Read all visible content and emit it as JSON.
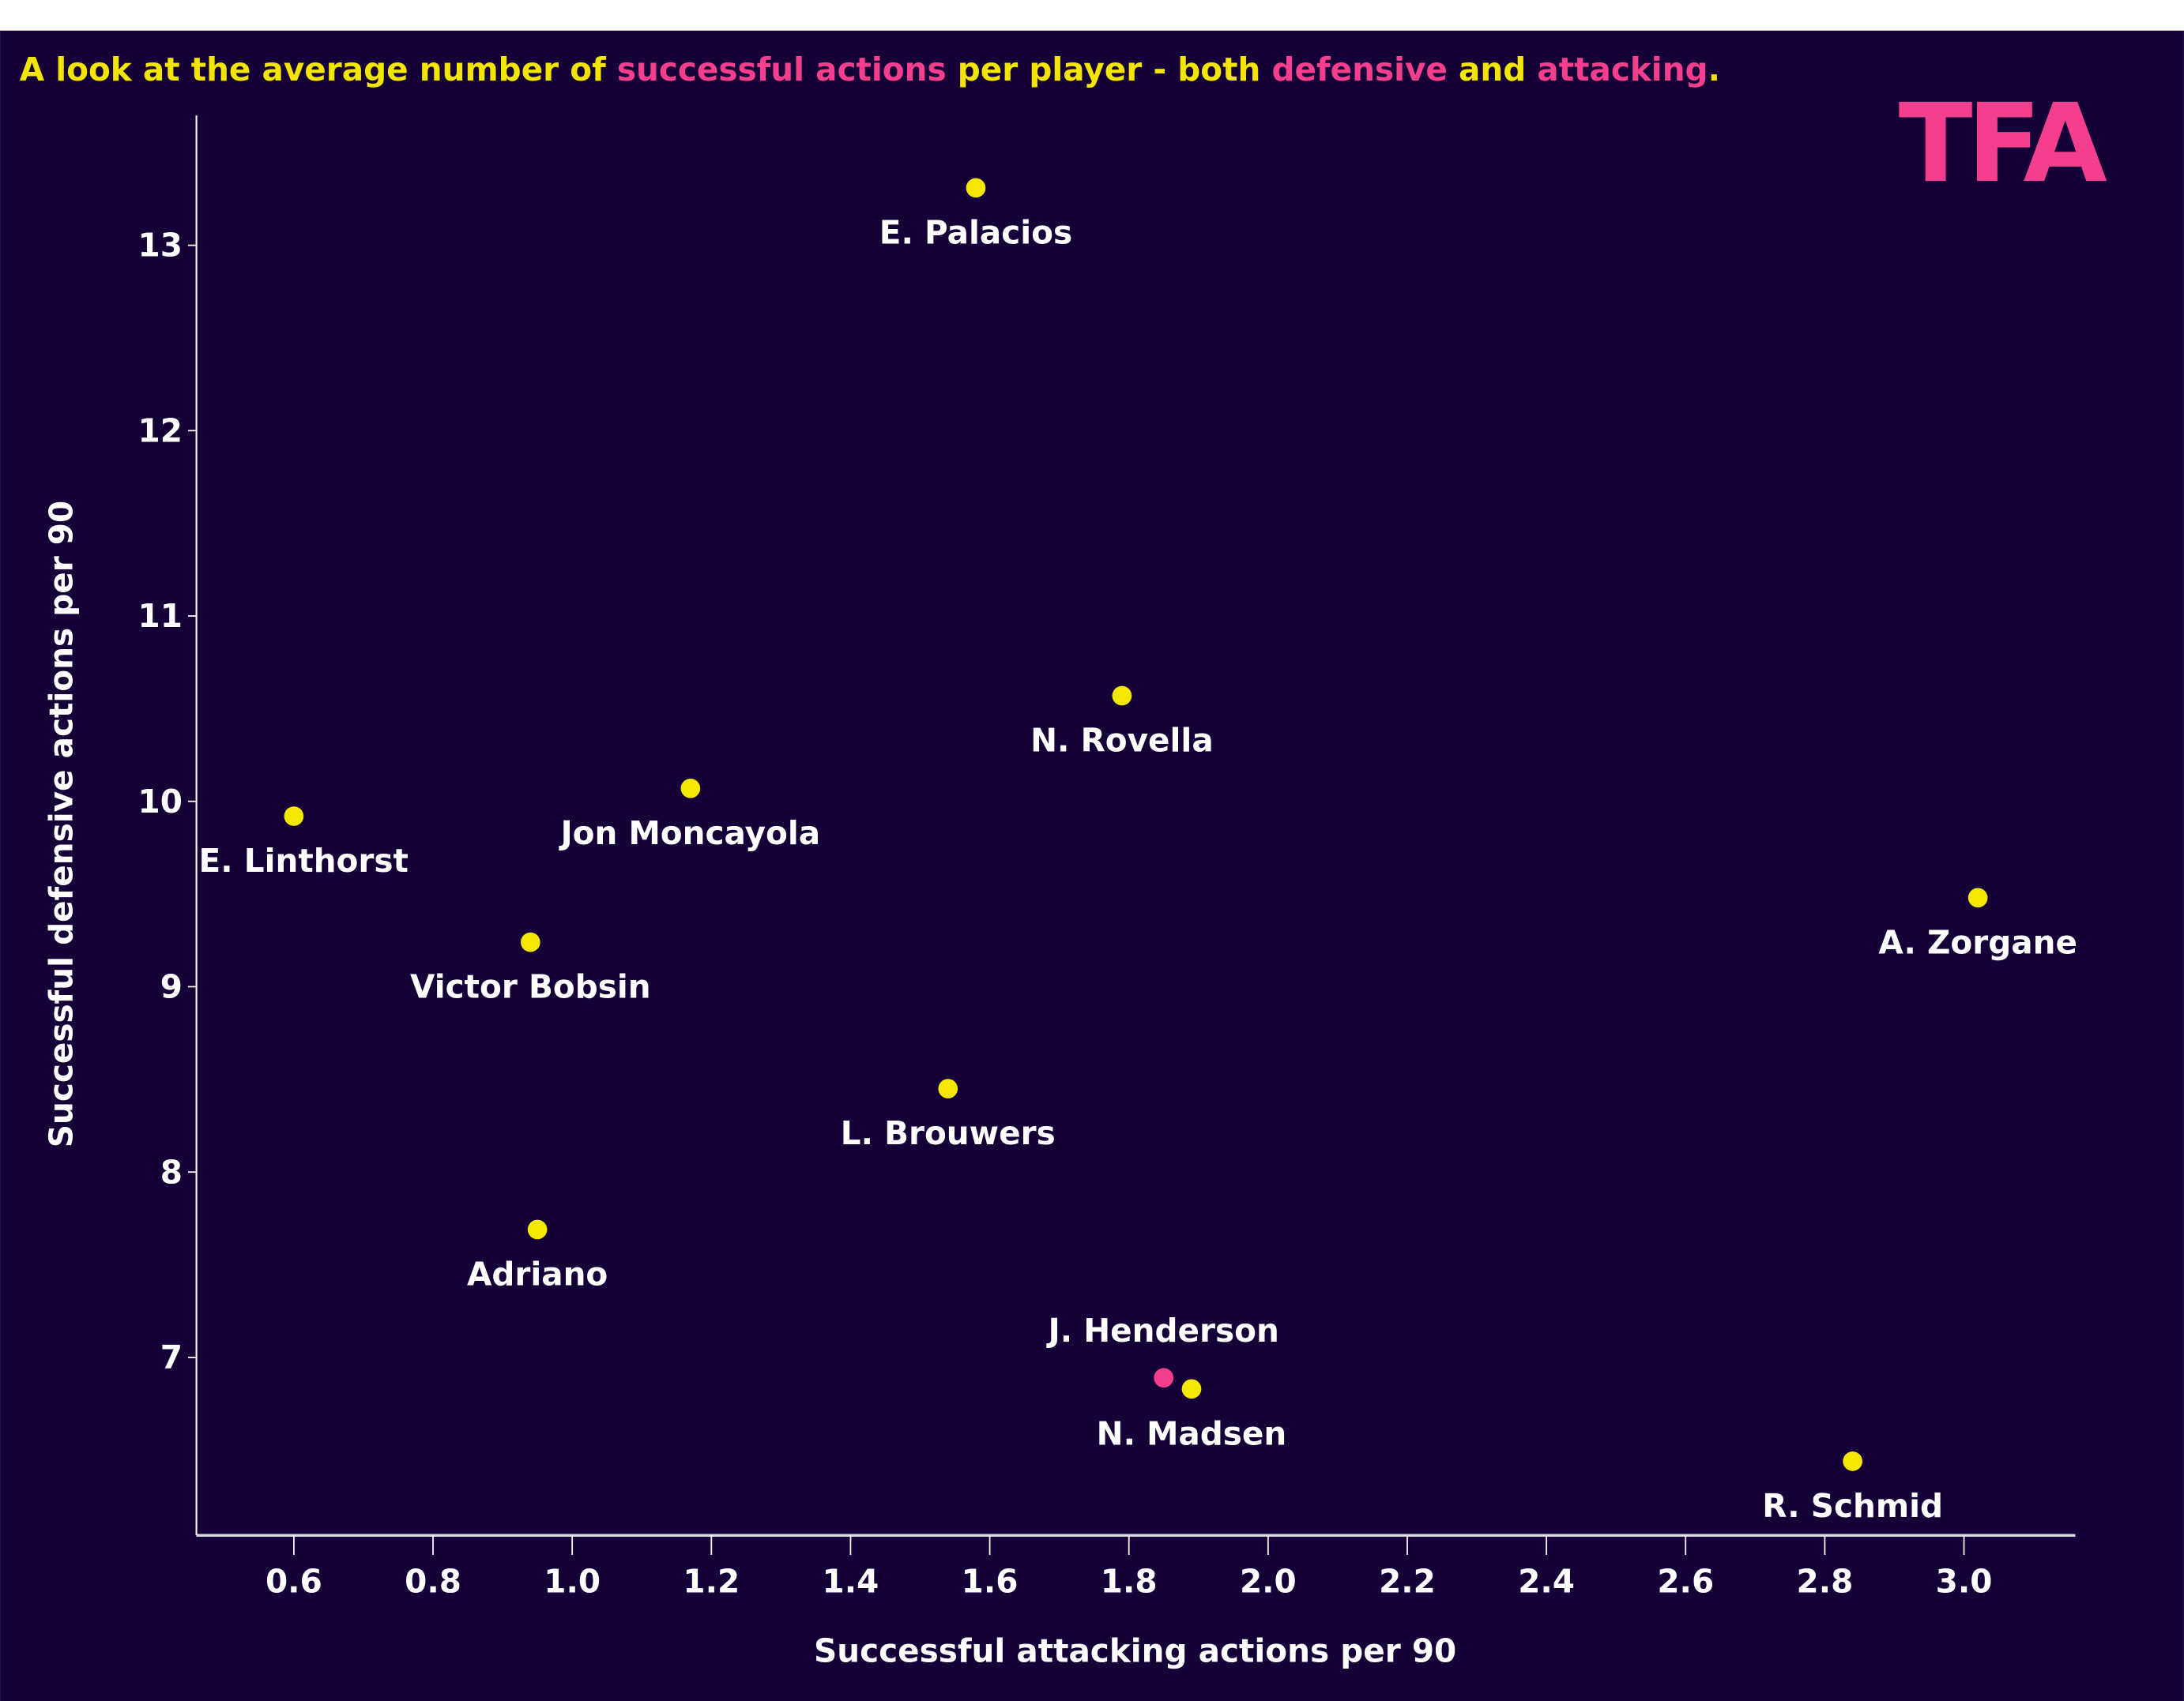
{
  "title_parts": [
    {
      "text": "A look at the average number of ",
      "color": "#f2e600"
    },
    {
      "text": "successful actions",
      "color": "#f43f8e"
    },
    {
      "text": " per player - both ",
      "color": "#f2e600"
    },
    {
      "text": "defensive",
      "color": "#f43f8e"
    },
    {
      "text": " and ",
      "color": "#f2e600"
    },
    {
      "text": "attacking",
      "color": "#f43f8e"
    },
    {
      "text": ".",
      "color": "#f2e600"
    }
  ],
  "logo": "TFA",
  "colors": {
    "background": "#150038",
    "point": "#f5e800",
    "highlight": "#f43f8e",
    "text": "#ffffff",
    "logo": "#f43f8e"
  },
  "chart_data": {
    "type": "scatter",
    "xlabel": "Successful attacking actions per 90",
    "ylabel": "Successful defensive actions per 90",
    "xlim": [
      0.46,
      3.16
    ],
    "ylim": [
      6.04,
      13.7
    ],
    "xticks": [
      "0.6",
      "0.8",
      "1.0",
      "1.2",
      "1.4",
      "1.6",
      "1.8",
      "2.0",
      "2.2",
      "2.4",
      "2.6",
      "2.8",
      "3.0"
    ],
    "yticks": [
      "7",
      "8",
      "9",
      "10",
      "11",
      "12",
      "13"
    ],
    "grid": false,
    "points": [
      {
        "label": "E. Palacios",
        "x": 1.58,
        "y": 13.31,
        "highlight": false
      },
      {
        "label": "N. Rovella",
        "x": 1.79,
        "y": 10.57,
        "highlight": false
      },
      {
        "label": "Jon Moncayola",
        "x": 1.17,
        "y": 10.07,
        "highlight": false
      },
      {
        "label": "E. Linthorst",
        "x": 0.6,
        "y": 9.92,
        "highlight": false
      },
      {
        "label": "A. Zorgane",
        "x": 3.02,
        "y": 9.48,
        "highlight": false
      },
      {
        "label": "Victor Bobsin",
        "x": 0.94,
        "y": 9.24,
        "highlight": false
      },
      {
        "label": "L. Brouwers",
        "x": 1.54,
        "y": 8.45,
        "highlight": false
      },
      {
        "label": "Adriano",
        "x": 0.95,
        "y": 7.69,
        "highlight": false
      },
      {
        "label": "J. Henderson",
        "x": 1.85,
        "y": 6.89,
        "highlight": true
      },
      {
        "label": "N. Madsen",
        "x": 1.89,
        "y": 6.83,
        "highlight": false
      },
      {
        "label": "R. Schmid",
        "x": 2.84,
        "y": 6.44,
        "highlight": false
      }
    ]
  }
}
